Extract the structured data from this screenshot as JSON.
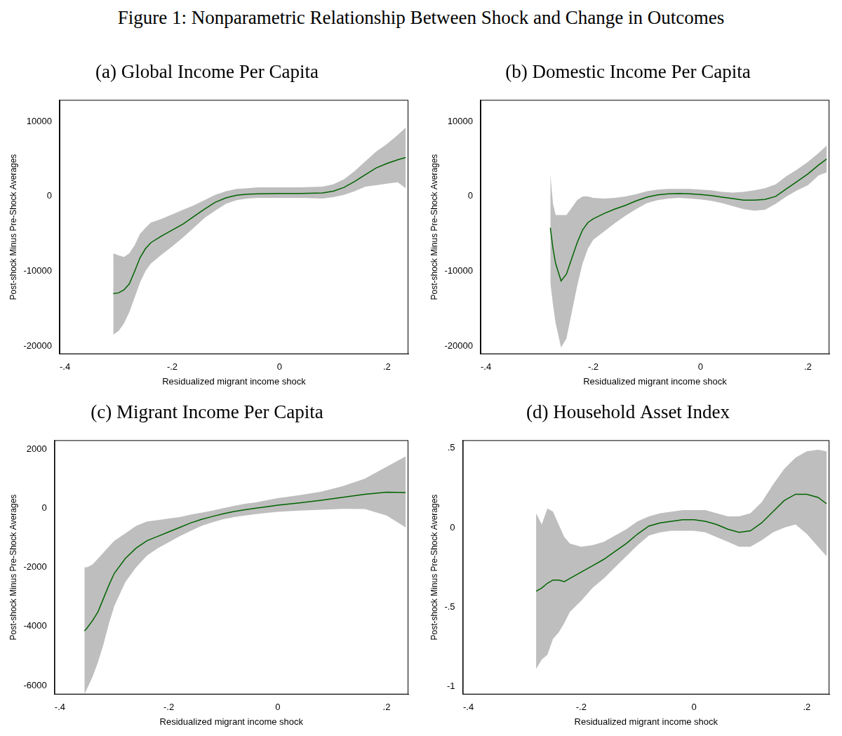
{
  "title": "Figure 1: Nonparametric Relationship Between Shock and Change in Outcomes",
  "chart_data": [
    {
      "type": "line",
      "title": "(a) Global Income Per Capita",
      "x_label": "Residualized migrant income shock",
      "y_label": "Post-shock Minus Pre-Shock Averages",
      "color": "#006400",
      "grid": false,
      "xlim": [
        -0.41,
        0.24
      ],
      "xticks": [
        {
          "value": -0.4,
          "label": "-.4"
        },
        {
          "value": -0.2,
          "label": "-.2"
        },
        0,
        {
          "value": 0.2,
          "label": ".2"
        }
      ],
      "ylim": [
        -21100,
        12900
      ],
      "yticks": [
        -20000,
        -10000,
        0,
        10000
      ],
      "x": [
        -0.31,
        -0.3,
        -0.29,
        -0.28,
        -0.27,
        -0.26,
        -0.25,
        -0.24,
        -0.22,
        -0.2,
        -0.18,
        -0.16,
        -0.14,
        -0.12,
        -0.1,
        -0.08,
        -0.06,
        -0.04,
        0,
        0.04,
        0.08,
        0.1,
        0.12,
        0.14,
        0.16,
        0.18,
        0.2,
        0.22,
        0.235
      ],
      "values": [
        -13000,
        -12900,
        -12500,
        -11700,
        -10000,
        -8200,
        -7000,
        -6200,
        -5300,
        -4500,
        -3700,
        -2700,
        -1700,
        -800,
        -200,
        150,
        300,
        350,
        400,
        400,
        450,
        700,
        1200,
        2000,
        2900,
        3800,
        4400,
        4900,
        5200
      ],
      "lower": [
        -18500,
        -18000,
        -17000,
        -15500,
        -13500,
        -11500,
        -10000,
        -9000,
        -7800,
        -6700,
        -5500,
        -4200,
        -2900,
        -1900,
        -1000,
        -500,
        -300,
        -200,
        -200,
        -200,
        -300,
        -100,
        200,
        700,
        1300,
        1500,
        1700,
        1900,
        1100
      ],
      "upper": [
        -7600,
        -7900,
        -8100,
        -7600,
        -6500,
        -5000,
        -4200,
        -3500,
        -3000,
        -2400,
        -1800,
        -1200,
        -500,
        200,
        700,
        1000,
        1100,
        1200,
        1200,
        1200,
        1300,
        1600,
        2300,
        3400,
        4700,
        6000,
        7000,
        8200,
        9200
      ]
    },
    {
      "type": "line",
      "title": "(b) Domestic Income Per Capita",
      "x_label": "Residualized migrant income shock",
      "y_label": "Post-shock Minus Pre-Shock Averages",
      "color": "#006400",
      "grid": false,
      "xlim": [
        -0.41,
        0.24
      ],
      "xticks": [
        {
          "value": -0.4,
          "label": "-.4"
        },
        {
          "value": -0.2,
          "label": "-.2"
        },
        0,
        {
          "value": 0.2,
          "label": ".2"
        }
      ],
      "ylim": [
        -21100,
        12900
      ],
      "yticks": [
        -20000,
        -10000,
        0,
        10000
      ],
      "x": [
        -0.28,
        -0.275,
        -0.27,
        -0.26,
        -0.25,
        -0.24,
        -0.23,
        -0.22,
        -0.21,
        -0.2,
        -0.18,
        -0.16,
        -0.14,
        -0.12,
        -0.1,
        -0.08,
        -0.06,
        -0.04,
        -0.02,
        0,
        0.02,
        0.04,
        0.06,
        0.08,
        0.1,
        0.12,
        0.14,
        0.16,
        0.18,
        0.2,
        0.22,
        0.235
      ],
      "values": [
        -4200,
        -7000,
        -9000,
        -11300,
        -10400,
        -8300,
        -6200,
        -4500,
        -3500,
        -3000,
        -2300,
        -1700,
        -1200,
        -600,
        -100,
        200,
        350,
        400,
        350,
        250,
        100,
        -100,
        -300,
        -500,
        -500,
        -400,
        0,
        1000,
        2000,
        3000,
        4200,
        5000
      ],
      "lower": [
        -11500,
        -14500,
        -17000,
        -20200,
        -19000,
        -15500,
        -12000,
        -9000,
        -7000,
        -5800,
        -4700,
        -3600,
        -2600,
        -1700,
        -900,
        -500,
        -300,
        -200,
        -300,
        -400,
        -600,
        -900,
        -1300,
        -1700,
        -1900,
        -1800,
        -1000,
        0,
        800,
        1500,
        2800,
        3200
      ],
      "upper": [
        3000,
        -1000,
        -2500,
        -2500,
        -2500,
        -1500,
        -500,
        0,
        0,
        -200,
        -300,
        -200,
        0,
        300,
        700,
        900,
        1000,
        1000,
        1000,
        900,
        800,
        600,
        500,
        600,
        800,
        1100,
        1600,
        2700,
        3600,
        4600,
        5800,
        6800
      ]
    },
    {
      "type": "line",
      "title": "(c) Migrant Income Per Capita",
      "x_label": "Residualized migrant income shock",
      "y_label": "Post-shock Minus Pre-Shock Averages",
      "color": "#006400",
      "grid": false,
      "xlim": [
        -0.41,
        0.24
      ],
      "xticks": [
        {
          "value": -0.4,
          "label": "-.4"
        },
        {
          "value": -0.2,
          "label": "-.2"
        },
        0,
        {
          "value": 0.2,
          "label": ".2"
        }
      ],
      "ylim": [
        -6300,
        2300
      ],
      "yticks": [
        -6000,
        -4000,
        -2000,
        0,
        2000
      ],
      "x": [
        -0.355,
        -0.35,
        -0.34,
        -0.33,
        -0.32,
        -0.31,
        -0.3,
        -0.28,
        -0.26,
        -0.24,
        -0.22,
        -0.2,
        -0.18,
        -0.16,
        -0.14,
        -0.12,
        -0.1,
        -0.08,
        -0.06,
        -0.04,
        -0.02,
        0,
        0.04,
        0.08,
        0.12,
        0.16,
        0.2,
        0.235
      ],
      "values": [
        -4150,
        -4050,
        -3800,
        -3500,
        -3050,
        -2600,
        -2200,
        -1700,
        -1350,
        -1100,
        -950,
        -800,
        -650,
        -500,
        -380,
        -280,
        -190,
        -110,
        -50,
        0,
        50,
        100,
        180,
        270,
        370,
        470,
        540,
        530
      ],
      "lower": [
        -6300,
        -6100,
        -5700,
        -5200,
        -4600,
        -3900,
        -3300,
        -2500,
        -2000,
        -1600,
        -1350,
        -1150,
        -950,
        -770,
        -600,
        -480,
        -370,
        -300,
        -250,
        -200,
        -160,
        -120,
        -80,
        -50,
        -20,
        -30,
        -250,
        -650
      ],
      "upper": [
        -2000,
        -2000,
        -1900,
        -1700,
        -1500,
        -1300,
        -1100,
        -850,
        -600,
        -450,
        -400,
        -350,
        -300,
        -220,
        -150,
        -80,
        0,
        80,
        150,
        200,
        270,
        340,
        440,
        560,
        750,
        1000,
        1400,
        1750
      ]
    },
    {
      "type": "line",
      "title": "(d) Household Asset Index",
      "x_label": "Residualized migrant income shock",
      "y_label": "Post-shock Minus Pre-Shock Averages",
      "color": "#006400",
      "grid": false,
      "xlim": [
        -0.41,
        0.24
      ],
      "xticks": [
        {
          "value": -0.4,
          "label": "-.4"
        },
        {
          "value": -0.2,
          "label": "-.2"
        },
        0,
        {
          "value": 0.2,
          "label": ".2"
        }
      ],
      "ylim": [
        -1.05,
        0.55
      ],
      "yticks": [
        -1,
        {
          "value": -0.5,
          "label": "-.5"
        },
        0,
        {
          "value": 0.5,
          "label": ".5"
        }
      ],
      "x": [
        -0.28,
        -0.27,
        -0.26,
        -0.25,
        -0.24,
        -0.23,
        -0.22,
        -0.2,
        -0.18,
        -0.16,
        -0.14,
        -0.12,
        -0.1,
        -0.08,
        -0.06,
        -0.04,
        -0.02,
        0,
        0.02,
        0.04,
        0.06,
        0.08,
        0.1,
        0.12,
        0.14,
        0.16,
        0.18,
        0.2,
        0.22,
        0.235
      ],
      "values": [
        -0.4,
        -0.38,
        -0.35,
        -0.33,
        -0.33,
        -0.34,
        -0.32,
        -0.28,
        -0.24,
        -0.2,
        -0.15,
        -0.1,
        -0.04,
        0.01,
        0.03,
        0.04,
        0.05,
        0.05,
        0.04,
        0.02,
        -0.01,
        -0.03,
        -0.02,
        0.03,
        0.1,
        0.17,
        0.21,
        0.21,
        0.19,
        0.15
      ],
      "lower": [
        -0.89,
        -0.83,
        -0.8,
        -0.7,
        -0.66,
        -0.6,
        -0.53,
        -0.46,
        -0.38,
        -0.32,
        -0.25,
        -0.18,
        -0.11,
        -0.05,
        -0.03,
        -0.02,
        -0.02,
        -0.02,
        -0.03,
        -0.06,
        -0.09,
        -0.12,
        -0.12,
        -0.08,
        -0.03,
        0.0,
        0.02,
        -0.04,
        -0.12,
        -0.18
      ],
      "upper": [
        0.09,
        0.02,
        0.12,
        0.1,
        0.02,
        -0.06,
        -0.1,
        -0.12,
        -0.11,
        -0.09,
        -0.05,
        -0.01,
        0.04,
        0.07,
        0.09,
        0.1,
        0.11,
        0.11,
        0.11,
        0.09,
        0.07,
        0.07,
        0.09,
        0.16,
        0.27,
        0.37,
        0.44,
        0.48,
        0.49,
        0.48
      ]
    }
  ]
}
